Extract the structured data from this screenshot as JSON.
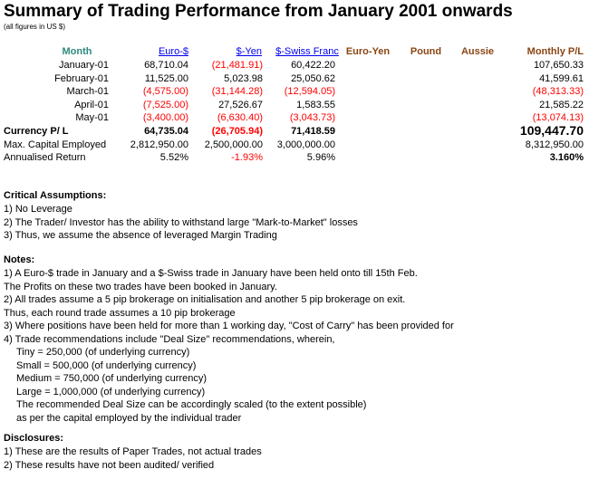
{
  "title": "Summary of Trading Performance from January 2001 onwards",
  "subtitle": "(all figures in US $)",
  "headers": {
    "month": "Month",
    "euro_usd": "Euro-$",
    "usd_yen": "$-Yen",
    "usd_chf": "$-Swiss Franc",
    "euro_yen": "Euro-Yen",
    "pound": "Pound",
    "aussie": "Aussie",
    "monthly_pl": "Monthly P/L"
  },
  "rows": [
    {
      "month": "January-01",
      "euro_usd": "68,710.04",
      "usd_yen": "(21,481.91)",
      "usd_chf": "60,422.20",
      "monthly_pl": "107,650.33"
    },
    {
      "month": "February-01",
      "euro_usd": "11,525.00",
      "usd_yen": "5,023.98",
      "usd_chf": "25,050.62",
      "monthly_pl": "41,599.61"
    },
    {
      "month": "March-01",
      "euro_usd": "(4,575.00)",
      "usd_yen": "(31,144.28)",
      "usd_chf": "(12,594.05)",
      "monthly_pl": "(48,313.33)"
    },
    {
      "month": "April-01",
      "euro_usd": "(7,525.00)",
      "usd_yen": "27,526.67",
      "usd_chf": "1,583.55",
      "monthly_pl": "21,585.22"
    },
    {
      "month": "May-01",
      "euro_usd": "(3,400.00)",
      "usd_yen": "(6,630.40)",
      "usd_chf": "(3,043.73)",
      "monthly_pl": "(13,074.13)"
    }
  ],
  "currency_pl": {
    "label": "Currency P/ L",
    "euro_usd": "64,735.04",
    "usd_yen": "(26,705.94)",
    "usd_chf": "71,418.59",
    "total": "109,447.70"
  },
  "max_capital": {
    "label": "Max. Capital Employed",
    "euro_usd": "2,812,950.00",
    "usd_yen": "2,500,000.00",
    "usd_chf": "3,000,000.00",
    "total": "8,312,950.00"
  },
  "annualised": {
    "label": "Annualised Return",
    "euro_usd": "5.52%",
    "usd_yen": "-1.93%",
    "usd_chf": "5.96%",
    "total": "3.160%"
  },
  "critical": {
    "heading": "Critical Assumptions:",
    "lines": [
      "1) No Leverage",
      "2) The Trader/ Investor has the ability to withstand large \"Mark-to-Market\" losses",
      "3) Thus, we assume the absence of leveraged Margin Trading"
    ]
  },
  "notes": {
    "heading": "Notes:",
    "lines": [
      "1) A Euro-$ trade in January and a $-Swiss trade in January have been held onto till 15th Feb.",
      "   The Profits on these two trades have been booked in January.",
      "2) All trades assume a 5 pip brokerage on initialisation and another 5 pip brokerage on exit.",
      "   Thus, each round trade assumes a 10 pip brokerage",
      "3) Where positions have been held for more than 1 working day, \"Cost of Carry\" has been provided for",
      "4) Trade recommendations include \"Deal Size\" recommendations, wherein,",
      "Tiny = 250,000 (of underlying currency)",
      "Small = 500,000 (of underlying currency)",
      "Medium = 750,000 (of underlying currency)",
      "Large = 1,000,000 (of underlying currency)",
      "The recommended Deal Size can be accordingly scaled (to the extent possible)",
      "as per the capital employed by the individual trader"
    ]
  },
  "disclosures": {
    "heading": "Disclosures:",
    "lines": [
      "1) These are the results of Paper Trades, not actual trades",
      "2) These results have not been audited/ verified"
    ]
  }
}
